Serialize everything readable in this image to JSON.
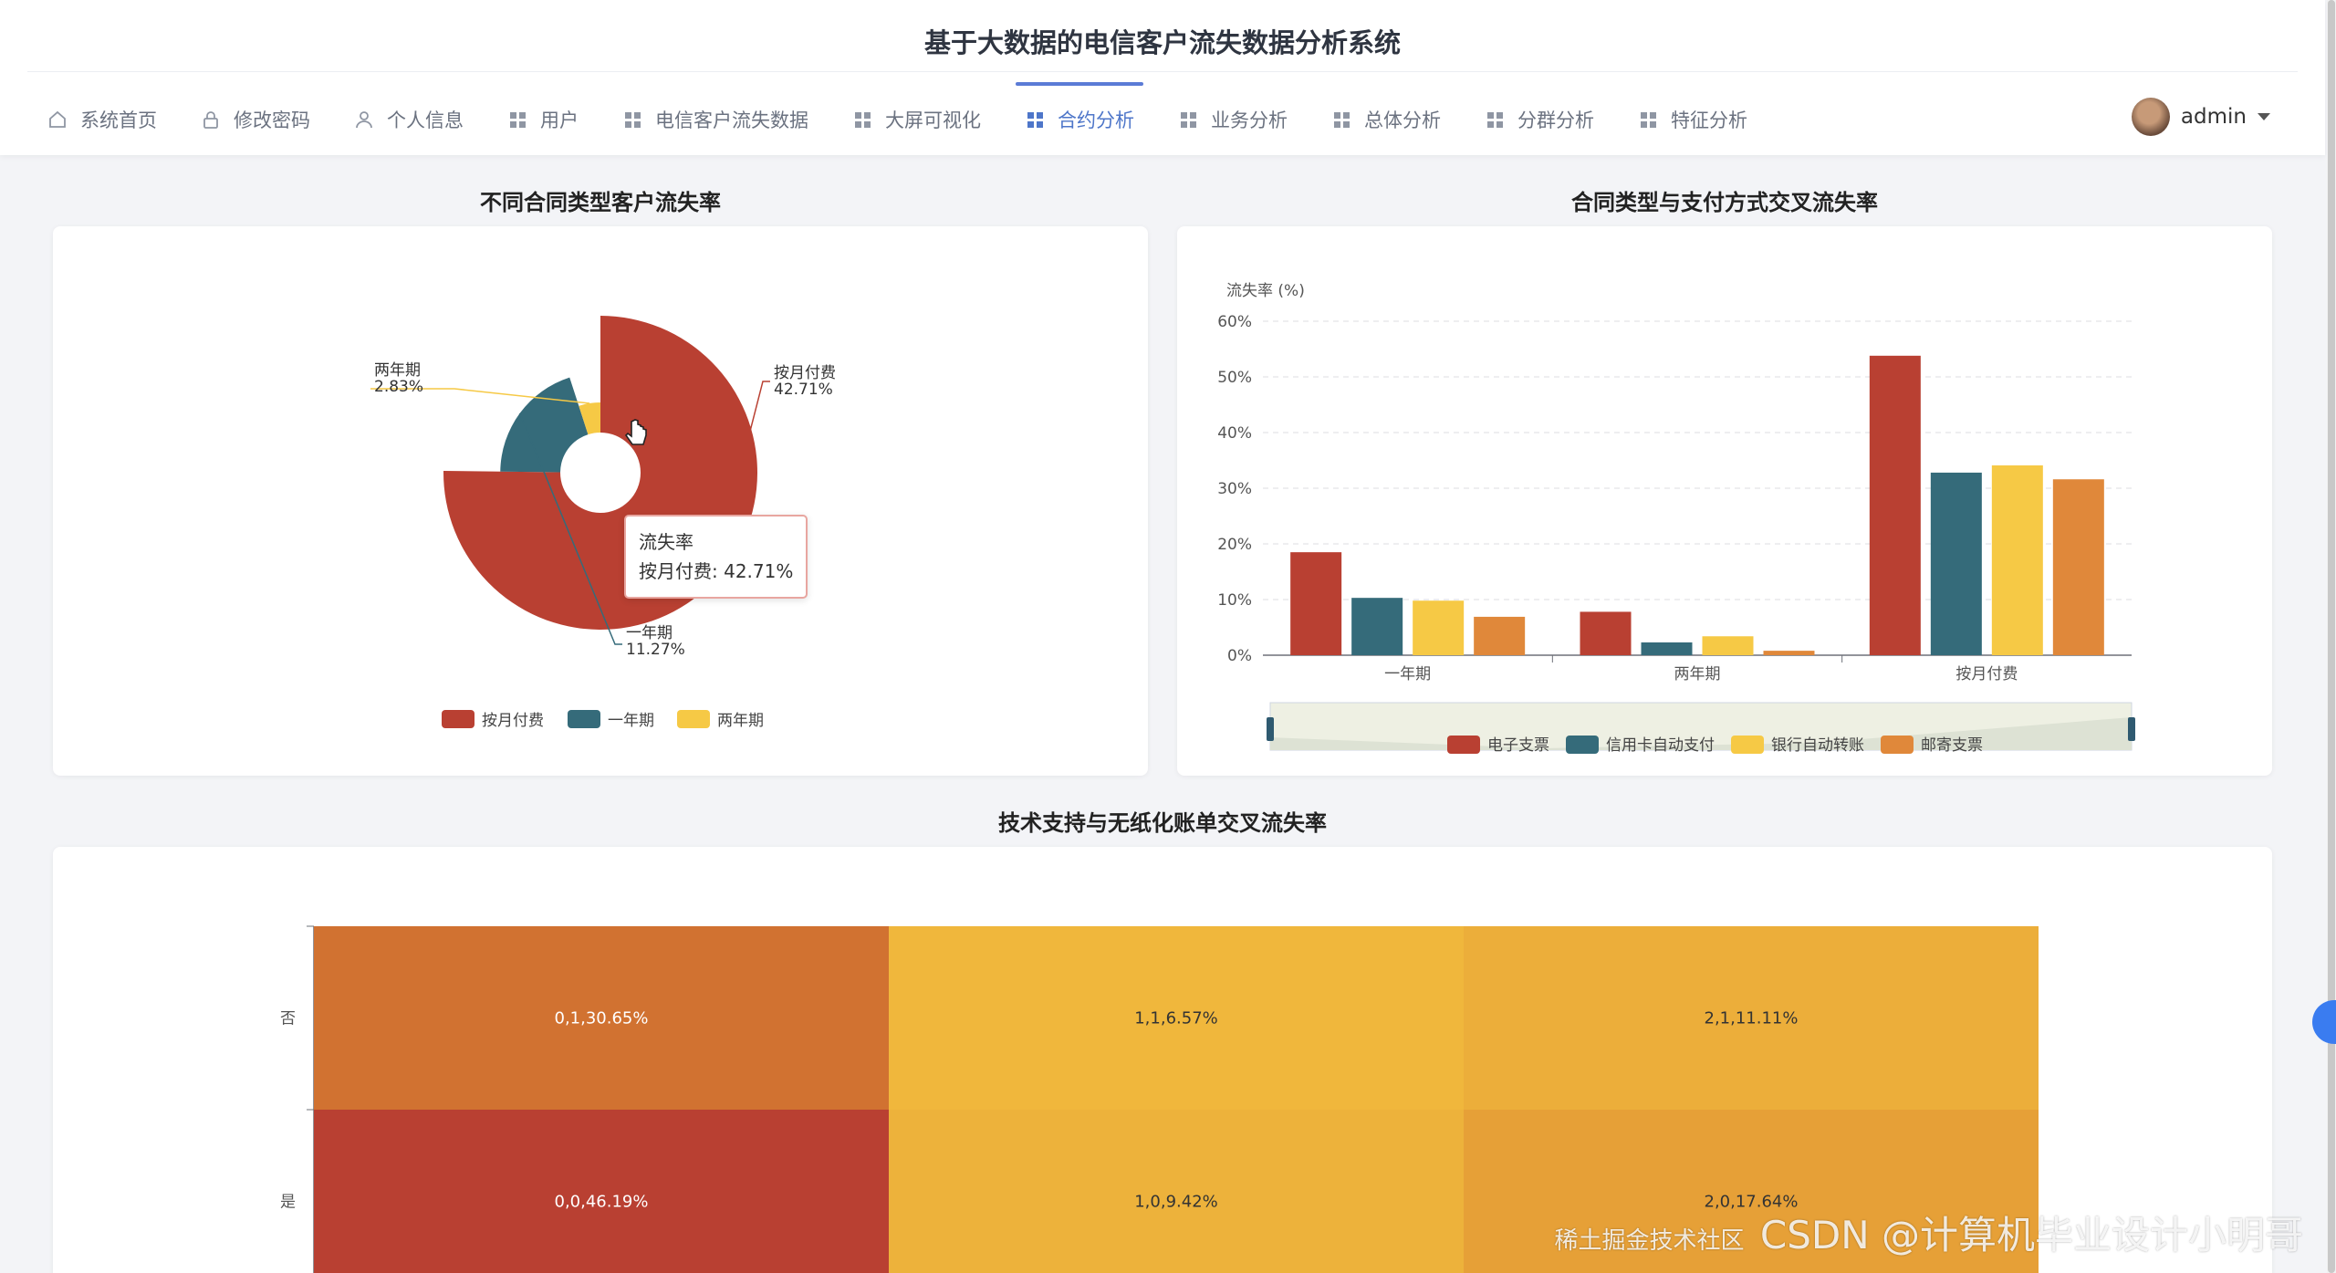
{
  "app": {
    "title": "基于大数据的电信客户流失数据分析系统"
  },
  "nav": {
    "items": [
      {
        "label": "系统首页",
        "icon": "home-icon"
      },
      {
        "label": "修改密码",
        "icon": "lock-icon"
      },
      {
        "label": "个人信息",
        "icon": "person-icon"
      },
      {
        "label": "用户",
        "icon": "grid-icon"
      },
      {
        "label": "电信客户流失数据",
        "icon": "grid-icon"
      },
      {
        "label": "大屏可视化",
        "icon": "grid-icon"
      },
      {
        "label": "合约分析",
        "icon": "grid-icon",
        "active": true
      },
      {
        "label": "业务分析",
        "icon": "grid-icon"
      },
      {
        "label": "总体分析",
        "icon": "grid-icon"
      },
      {
        "label": "分群分析",
        "icon": "grid-icon"
      },
      {
        "label": "特征分析",
        "icon": "grid-icon"
      }
    ]
  },
  "user": {
    "name": "admin"
  },
  "sections": {
    "pie_title": "不同合同类型客户流失率",
    "bar_title": "合同类型与支付方式交叉流失率",
    "heat_title": "技术支持与无纸化账单交叉流失率"
  },
  "tooltip": {
    "title": "流失率",
    "line": "按月付费: 42.71%"
  },
  "watermark": "CSDN @计算机毕业设计小明哥",
  "watermark2": "稀土掘金技术社区",
  "colors": {
    "red": "#b94032",
    "teal": "#356b7a",
    "yellow": "#f6c945",
    "orange": "#e0883a"
  },
  "chart_data": [
    {
      "type": "pie",
      "title": "不同合同类型客户流失率",
      "series_name": "流失率",
      "slices": [
        {
          "name": "按月付费",
          "value": 42.71,
          "label": "42.71%",
          "color": "#b94032"
        },
        {
          "name": "一年期",
          "value": 11.27,
          "label": "11.27%",
          "color": "#356b7a"
        },
        {
          "name": "两年期",
          "value": 2.83,
          "label": "2.83%",
          "color": "#f6c945"
        }
      ],
      "legend": [
        "按月付费",
        "一年期",
        "两年期"
      ],
      "legend_position": "bottom",
      "rose": true
    },
    {
      "type": "bar",
      "title": "合同类型与支付方式交叉流失率",
      "ylabel": "流失率 (%)",
      "ylim": [
        0,
        60
      ],
      "yticks": [
        "0%",
        "10%",
        "20%",
        "30%",
        "40%",
        "50%",
        "60%"
      ],
      "categories": [
        "一年期",
        "两年期",
        "按月付费"
      ],
      "series": [
        {
          "name": "电子支票",
          "values": [
            18.5,
            7.8,
            53.8
          ],
          "color": "#b94032"
        },
        {
          "name": "信用卡自动支付",
          "values": [
            10.3,
            2.3,
            32.8
          ],
          "color": "#356b7a"
        },
        {
          "name": "银行自动转账",
          "values": [
            9.8,
            3.4,
            34.1
          ],
          "color": "#f6c945"
        },
        {
          "name": "邮寄支票",
          "values": [
            6.9,
            0.8,
            31.6
          ],
          "color": "#e0883a"
        }
      ],
      "grid": true,
      "legend_position": "bottom",
      "datazoom": true
    },
    {
      "type": "heatmap",
      "title": "技术支持与无纸化账单交叉流失率",
      "y_categories": [
        "否",
        "是"
      ],
      "rows": [
        {
          "y": "否",
          "cells": [
            {
              "label": "0,1,30.65%",
              "value": 30.65
            },
            {
              "label": "1,1,6.57%",
              "value": 6.57
            },
            {
              "label": "2,1,11.11%",
              "value": 11.11
            }
          ]
        },
        {
          "y": "是",
          "cells": [
            {
              "label": "0,0,46.19%",
              "value": 46.19
            },
            {
              "label": "1,0,9.42%",
              "value": 9.42
            },
            {
              "label": "2,0,17.64%",
              "value": 17.64
            }
          ]
        }
      ]
    }
  ]
}
